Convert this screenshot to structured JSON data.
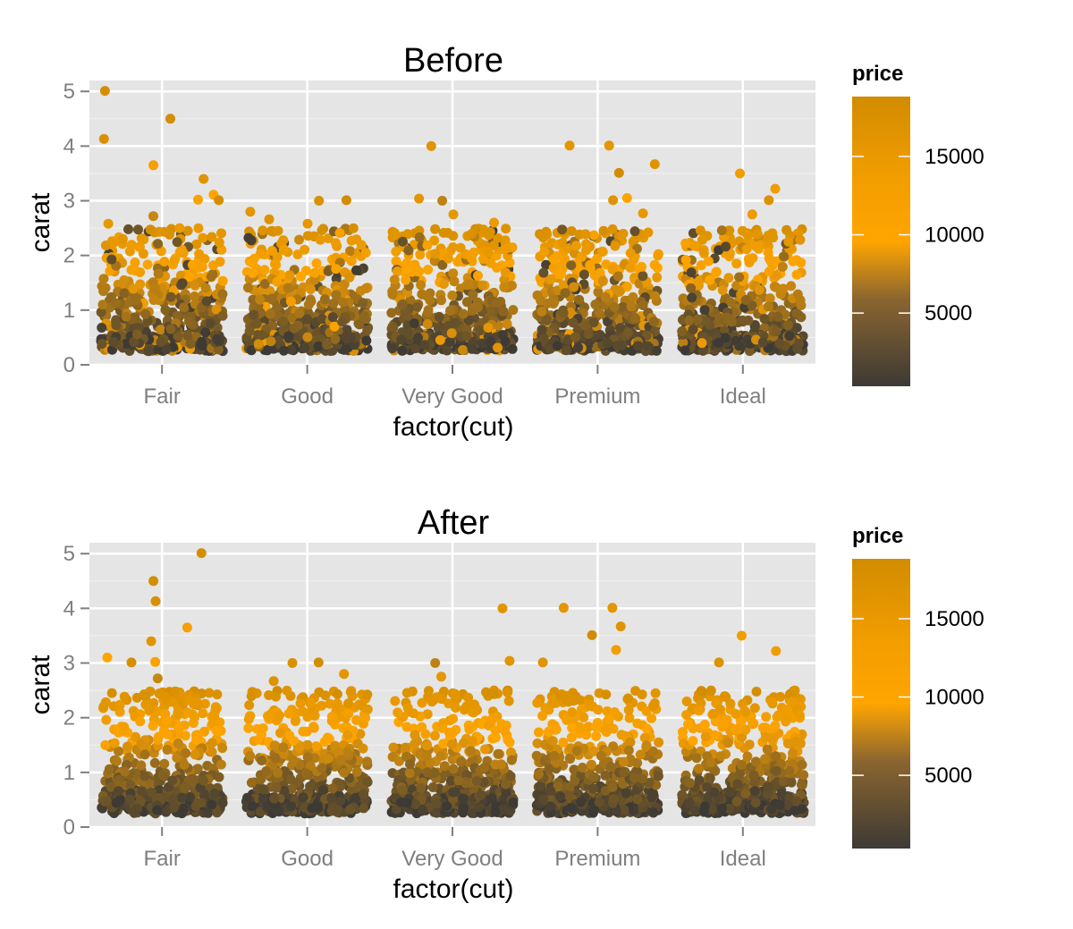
{
  "chart_data": [
    {
      "type": "scatter",
      "title": "Before",
      "xlabel": "factor(cut)",
      "ylabel": "carat",
      "categories": [
        "Fair",
        "Good",
        "Very Good",
        "Premium",
        "Ideal"
      ],
      "y_ticks": [
        "0",
        "1",
        "2",
        "3",
        "4",
        "5"
      ],
      "ylim": [
        0,
        5.2
      ],
      "grid": true,
      "jitter": "horizontal",
      "legend": {
        "title": "price",
        "position": "right",
        "tick_values": [
          5000,
          10000,
          15000
        ],
        "tick_labels": [
          "5000",
          "10000",
          "15000"
        ],
        "range": [
          326,
          18823
        ]
      },
      "color_scale": {
        "low": "#3d3a35",
        "mid": "#ffa500",
        "high": "#d18c00"
      },
      "points": [
        {
          "cat": "Fair",
          "carat": 5.01,
          "price": 18018
        },
        {
          "cat": "Fair",
          "carat": 4.5,
          "price": 18531
        },
        {
          "cat": "Fair",
          "carat": 4.13,
          "price": 17329
        },
        {
          "cat": "Fair",
          "carat": 3.65,
          "price": 11668
        },
        {
          "cat": "Fair",
          "carat": 3.4,
          "price": 15964
        },
        {
          "cat": "Fair",
          "carat": 3.11,
          "price": 9823
        },
        {
          "cat": "Fair",
          "carat": 3.02,
          "price": 10577
        },
        {
          "cat": "Fair",
          "carat": 3.01,
          "price": 18242
        },
        {
          "cat": "Fair",
          "carat": 2.72,
          "price": 6870
        },
        {
          "cat": "Fair",
          "carat": 2.58,
          "price": 14480
        },
        {
          "cat": "Fair",
          "carat": 2.5,
          "price": 13600
        },
        {
          "cat": "Good",
          "carat": 3.01,
          "price": 18593
        },
        {
          "cat": "Good",
          "carat": 3.0,
          "price": 16970
        },
        {
          "cat": "Good",
          "carat": 2.8,
          "price": 15030
        },
        {
          "cat": "Good",
          "carat": 2.66,
          "price": 16239
        },
        {
          "cat": "Good",
          "carat": 2.58,
          "price": 14300
        },
        {
          "cat": "Very Good",
          "carat": 4.0,
          "price": 15984
        },
        {
          "cat": "Very Good",
          "carat": 3.04,
          "price": 15354
        },
        {
          "cat": "Very Good",
          "carat": 3.0,
          "price": 6512
        },
        {
          "cat": "Very Good",
          "carat": 2.75,
          "price": 14800
        },
        {
          "cat": "Very Good",
          "carat": 2.6,
          "price": 13200
        },
        {
          "cat": "Premium",
          "carat": 4.01,
          "price": 15223
        },
        {
          "cat": "Premium",
          "carat": 4.01,
          "price": 15223
        },
        {
          "cat": "Premium",
          "carat": 3.67,
          "price": 16193
        },
        {
          "cat": "Premium",
          "carat": 3.51,
          "price": 18701
        },
        {
          "cat": "Premium",
          "carat": 3.05,
          "price": 10453
        },
        {
          "cat": "Premium",
          "carat": 3.01,
          "price": 8040
        },
        {
          "cat": "Premium",
          "carat": 2.77,
          "price": 14500
        },
        {
          "cat": "Ideal",
          "carat": 3.5,
          "price": 12587
        },
        {
          "cat": "Ideal",
          "carat": 3.22,
          "price": 12545
        },
        {
          "cat": "Ideal",
          "carat": 3.01,
          "price": 16538
        },
        {
          "cat": "Ideal",
          "carat": 2.75,
          "price": 13156
        }
      ],
      "note": "Each category also contains a dense cloud of jittered points between about 0.2 and 2.5 carat; colour darkens toward low carat (low price)."
    },
    {
      "type": "scatter",
      "title": "After",
      "xlabel": "factor(cut)",
      "ylabel": "carat",
      "categories": [
        "Fair",
        "Good",
        "Very Good",
        "Premium",
        "Ideal"
      ],
      "y_ticks": [
        "0",
        "1",
        "2",
        "3",
        "4",
        "5"
      ],
      "ylim": [
        0,
        5.2
      ],
      "grid": true,
      "jitter": "horizontal",
      "legend": {
        "title": "price",
        "position": "right",
        "tick_values": [
          5000,
          10000,
          15000
        ],
        "tick_labels": [
          "5000",
          "10000",
          "15000"
        ],
        "range": [
          326,
          18823
        ]
      },
      "color_scale": {
        "low": "#3d3a35",
        "mid": "#ffa500",
        "high": "#d18c00"
      },
      "points": [
        {
          "cat": "Fair",
          "carat": 5.01,
          "price": 18018
        },
        {
          "cat": "Fair",
          "carat": 4.5,
          "price": 18531
        },
        {
          "cat": "Fair",
          "carat": 4.13,
          "price": 17329
        },
        {
          "cat": "Fair",
          "carat": 3.65,
          "price": 11668
        },
        {
          "cat": "Fair",
          "carat": 3.4,
          "price": 15964
        },
        {
          "cat": "Fair",
          "carat": 3.1,
          "price": 9823
        },
        {
          "cat": "Fair",
          "carat": 3.02,
          "price": 10577
        },
        {
          "cat": "Fair",
          "carat": 3.01,
          "price": 18242
        },
        {
          "cat": "Fair",
          "carat": 2.72,
          "price": 6870
        },
        {
          "cat": "Good",
          "carat": 3.01,
          "price": 18593
        },
        {
          "cat": "Good",
          "carat": 3.0,
          "price": 16970
        },
        {
          "cat": "Good",
          "carat": 2.8,
          "price": 15030
        },
        {
          "cat": "Good",
          "carat": 2.67,
          "price": 16239
        },
        {
          "cat": "Very Good",
          "carat": 4.0,
          "price": 15984
        },
        {
          "cat": "Very Good",
          "carat": 3.04,
          "price": 15354
        },
        {
          "cat": "Very Good",
          "carat": 3.0,
          "price": 6512
        },
        {
          "cat": "Very Good",
          "carat": 2.75,
          "price": 14800
        },
        {
          "cat": "Premium",
          "carat": 4.01,
          "price": 15223
        },
        {
          "cat": "Premium",
          "carat": 4.01,
          "price": 15223
        },
        {
          "cat": "Premium",
          "carat": 3.67,
          "price": 16193
        },
        {
          "cat": "Premium",
          "carat": 3.51,
          "price": 18701
        },
        {
          "cat": "Premium",
          "carat": 3.24,
          "price": 12300
        },
        {
          "cat": "Premium",
          "carat": 3.01,
          "price": 8040
        },
        {
          "cat": "Ideal",
          "carat": 3.5,
          "price": 12587
        },
        {
          "cat": "Ideal",
          "carat": 3.22,
          "price": 12545
        },
        {
          "cat": "Ideal",
          "carat": 3.01,
          "price": 16538
        }
      ],
      "note": "Same data as Before, re-drawn so the colour gradient runs smoothly with carat inside each cloud."
    }
  ]
}
